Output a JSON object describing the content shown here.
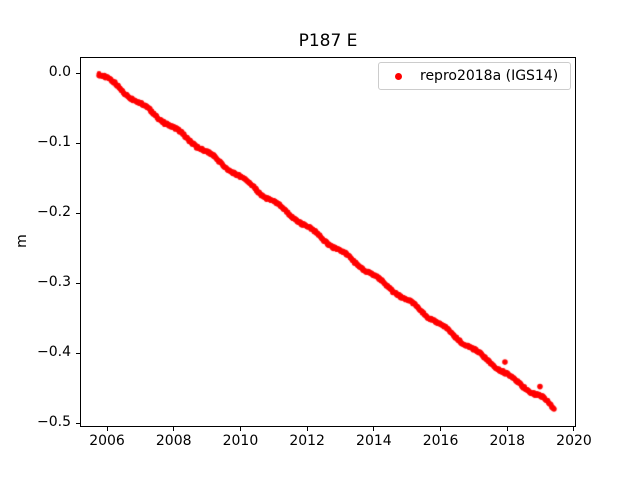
{
  "title": "P187 E",
  "ylabel": "m",
  "legend": {
    "label": "repro2018a (IGS14)"
  },
  "colors": {
    "marker": "#ff0000",
    "legend_border": "#cccccc",
    "text": "#000000",
    "background": "#ffffff",
    "spine": "#000000"
  },
  "chart_data": {
    "type": "scatter",
    "title": "P187 E",
    "xlabel": "",
    "ylabel": "m",
    "xlim": [
      2005.19,
      2020.06
    ],
    "ylim": [
      -0.5057,
      0.0229
    ],
    "xticks": [
      2006,
      2008,
      2010,
      2012,
      2014,
      2016,
      2018,
      2020
    ],
    "xtick_labels": [
      "2006",
      "2008",
      "2010",
      "2012",
      "2014",
      "2016",
      "2018",
      "2020"
    ],
    "yticks": [
      0.0,
      -0.1,
      -0.2,
      -0.3,
      -0.4,
      -0.5
    ],
    "ytick_labels": [
      "0.0",
      "−0.1",
      "−0.2",
      "−0.3",
      "−0.4",
      "−0.5"
    ],
    "grid": false,
    "legend_position": "upper right",
    "series": [
      {
        "name": "repro2018a (IGS14)",
        "color": "#ff0000",
        "marker": "point",
        "trend": {
          "start_x": 2005.76,
          "start_y": 0.0,
          "end_x": 2019.43,
          "end_y": -0.481,
          "slope_m_per_yr": -0.0352
        },
        "x": [
          2005.76,
          2006.0,
          2006.2,
          2006.4,
          2006.6,
          2006.8,
          2007.0,
          2007.2,
          2007.4,
          2007.6,
          2007.8,
          2008.0,
          2008.2,
          2008.4,
          2008.6,
          2008.8,
          2009.0,
          2009.2,
          2009.4,
          2009.6,
          2009.8,
          2010.0,
          2010.2,
          2010.4,
          2010.6,
          2010.8,
          2011.0,
          2011.2,
          2011.4,
          2011.6,
          2011.8,
          2012.0,
          2012.2,
          2012.4,
          2012.6,
          2012.8,
          2013.0,
          2013.2,
          2013.4,
          2013.6,
          2013.8,
          2014.0,
          2014.2,
          2014.4,
          2014.6,
          2014.8,
          2015.0,
          2015.2,
          2015.4,
          2015.6,
          2015.8,
          2016.0,
          2016.2,
          2016.4,
          2016.6,
          2016.8,
          2017.0,
          2017.2,
          2017.4,
          2017.6,
          2017.8,
          2018.0,
          2018.2,
          2018.4,
          2018.6,
          2018.8,
          2019.0,
          2019.2,
          2019.4
        ],
        "y": [
          0.0,
          -0.008,
          -0.015,
          -0.023,
          -0.03,
          -0.037,
          -0.044,
          -0.051,
          -0.058,
          -0.065,
          -0.072,
          -0.079,
          -0.086,
          -0.093,
          -0.1,
          -0.107,
          -0.114,
          -0.121,
          -0.128,
          -0.135,
          -0.142,
          -0.149,
          -0.156,
          -0.163,
          -0.171,
          -0.178,
          -0.185,
          -0.192,
          -0.199,
          -0.206,
          -0.213,
          -0.22,
          -0.227,
          -0.234,
          -0.241,
          -0.248,
          -0.255,
          -0.262,
          -0.269,
          -0.276,
          -0.283,
          -0.29,
          -0.297,
          -0.304,
          -0.311,
          -0.318,
          -0.325,
          -0.332,
          -0.339,
          -0.346,
          -0.353,
          -0.36,
          -0.368,
          -0.375,
          -0.382,
          -0.389,
          -0.396,
          -0.403,
          -0.41,
          -0.417,
          -0.424,
          -0.431,
          -0.438,
          -0.445,
          -0.451,
          -0.457,
          -0.462,
          -0.471,
          -0.48
        ],
        "outliers": {
          "x": [
            2017.93,
            2018.98
          ],
          "y": [
            -0.413,
            -0.448
          ]
        }
      }
    ]
  }
}
